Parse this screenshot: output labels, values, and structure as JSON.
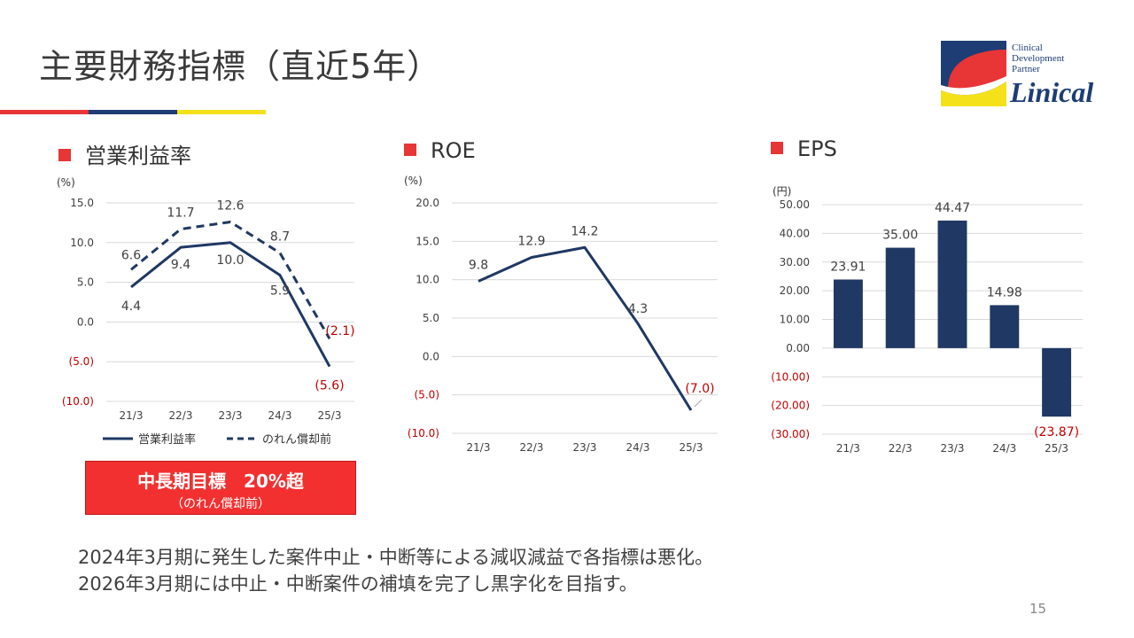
{
  "page": {
    "title": "主要財務指標（直近5年）",
    "page_number": "15",
    "colors": {
      "navy": "#1f3864",
      "red": "#e83535",
      "label_red": "#c00000",
      "rule_blue": "#1d3d74",
      "rule_yellow": "#f5e11a"
    }
  },
  "logo": {
    "line1": "Clinical",
    "line2": "Development",
    "line3": "Partner",
    "wordmark": "Linical"
  },
  "target_box": {
    "main": "中長期目標　20%超",
    "sub": "（のれん償却前）"
  },
  "footnote": {
    "line1": "2024年3月期に発生した案件中止・中断等による減収減益で各指標は悪化。",
    "line2": "2026年3月期には中止・中断案件の補填を完了し黒字化を目指す。"
  },
  "chart_data": [
    {
      "id": "operating-margin",
      "type": "line",
      "title": "営業利益率",
      "unit": "(%)",
      "categories": [
        "21/3",
        "22/3",
        "23/3",
        "24/3",
        "25/3"
      ],
      "ylim": [
        -10,
        15
      ],
      "yticks": [
        15,
        10,
        5,
        0,
        -5,
        -10
      ],
      "ytick_labels": [
        "15.0",
        "10.0",
        "5.0",
        "0.0",
        "(5.0)",
        "(10.0)"
      ],
      "series": [
        {
          "name": "営業利益率",
          "style": "solid",
          "values": [
            4.4,
            9.4,
            10.0,
            5.9,
            -5.6
          ],
          "labels": [
            "4.4",
            "9.4",
            "10.0",
            "5.9",
            "(5.6)"
          ]
        },
        {
          "name": "のれん償却前",
          "style": "dashed",
          "values": [
            6.6,
            11.7,
            12.6,
            8.7,
            -2.1
          ],
          "labels": [
            "6.6",
            "11.7",
            "12.6",
            "8.7",
            "(2.1)"
          ]
        }
      ],
      "legend": "bottom"
    },
    {
      "id": "roe",
      "type": "line",
      "title": "ROE",
      "unit": "(%)",
      "categories": [
        "21/3",
        "22/3",
        "23/3",
        "24/3",
        "25/3"
      ],
      "ylim": [
        -10,
        20
      ],
      "yticks": [
        20,
        15,
        10,
        5,
        0,
        -5,
        -10
      ],
      "ytick_labels": [
        "20.0",
        "15.0",
        "10.0",
        "5.0",
        "0.0",
        "(5.0)",
        "(10.0)"
      ],
      "series": [
        {
          "name": "ROE",
          "style": "solid",
          "values": [
            9.8,
            12.9,
            14.2,
            4.3,
            -7.0
          ],
          "labels": [
            "9.8",
            "12.9",
            "14.2",
            "4.3",
            "(7.0)"
          ]
        }
      ]
    },
    {
      "id": "eps",
      "type": "bar",
      "title": "EPS",
      "unit": "(円)",
      "categories": [
        "21/3",
        "22/3",
        "23/3",
        "24/3",
        "25/3"
      ],
      "ylim": [
        -30,
        50
      ],
      "yticks": [
        50,
        40,
        30,
        20,
        10,
        0,
        -10,
        -20,
        -30
      ],
      "ytick_labels": [
        "50.00",
        "40.00",
        "30.00",
        "20.00",
        "10.00",
        "0.00",
        "(10.00)",
        "(20.00)",
        "(30.00)"
      ],
      "values": [
        23.91,
        35.0,
        44.47,
        14.98,
        -23.87
      ],
      "labels": [
        "23.91",
        "35.00",
        "44.47",
        "14.98",
        "(23.87)"
      ]
    }
  ]
}
